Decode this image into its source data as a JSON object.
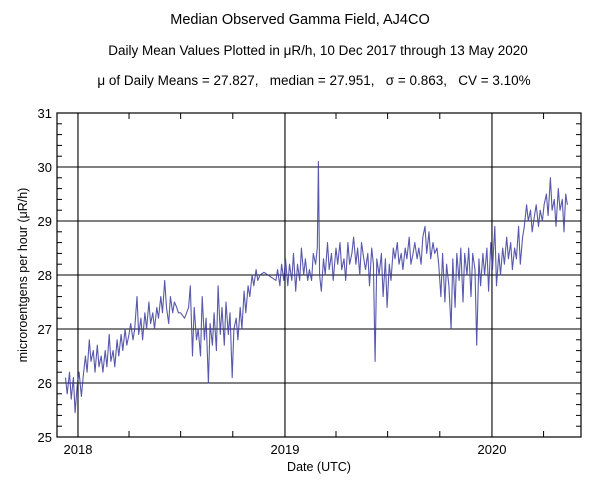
{
  "chart_data": {
    "type": "line",
    "title": "Median Observed Gamma Field, AJ4CO",
    "subtitle": "Daily Mean Values Plotted in μR/h, 10 Dec 2017 through 13 May 2020",
    "stats_line": "μ of Daily Means = 27.827,   median = 27.951,   σ = 0.863,   CV = 3.10%",
    "xlabel": "Date (UTC)",
    "ylabel": "microroentgens per hour (μR/h)",
    "xlim": [
      "2017-11-25",
      "2020-06-06"
    ],
    "ylim": [
      25,
      31
    ],
    "yticks": [
      "25",
      "26",
      "27",
      "28",
      "29",
      "30",
      "31"
    ],
    "xticks": [
      "2018",
      "2019",
      "2020"
    ],
    "grid": true,
    "line_color": "#3b3b9e",
    "points": [
      [
        "2017-12-10",
        26.1
      ],
      [
        "2017-12-13",
        25.8
      ],
      [
        "2017-12-17",
        26.2
      ],
      [
        "2017-12-20",
        25.7
      ],
      [
        "2017-12-24",
        26.1
      ],
      [
        "2017-12-27",
        25.45
      ],
      [
        "2017-12-31",
        26.0
      ],
      [
        "2018-01-03",
        26.2
      ],
      [
        "2018-01-07",
        25.75
      ],
      [
        "2018-01-10",
        26.1
      ],
      [
        "2018-01-14",
        26.5
      ],
      [
        "2018-01-17",
        26.2
      ],
      [
        "2018-01-21",
        26.8
      ],
      [
        "2018-01-24",
        26.4
      ],
      [
        "2018-01-28",
        26.6
      ],
      [
        "2018-01-31",
        26.2
      ],
      [
        "2018-02-04",
        26.7
      ],
      [
        "2018-02-07",
        26.3
      ],
      [
        "2018-02-11",
        26.5
      ],
      [
        "2018-02-14",
        26.2
      ],
      [
        "2018-02-18",
        26.6
      ],
      [
        "2018-02-21",
        26.3
      ],
      [
        "2018-02-25",
        26.9
      ],
      [
        "2018-02-28",
        26.4
      ],
      [
        "2018-03-04",
        26.6
      ],
      [
        "2018-03-07",
        26.3
      ],
      [
        "2018-03-11",
        26.8
      ],
      [
        "2018-03-14",
        26.5
      ],
      [
        "2018-03-18",
        26.9
      ],
      [
        "2018-03-21",
        26.6
      ],
      [
        "2018-03-25",
        27.0
      ],
      [
        "2018-03-28",
        26.7
      ],
      [
        "2018-04-01",
        26.9
      ],
      [
        "2018-04-04",
        27.1
      ],
      [
        "2018-04-08",
        26.8
      ],
      [
        "2018-04-11",
        27.0
      ],
      [
        "2018-04-15",
        27.6
      ],
      [
        "2018-04-18",
        26.9
      ],
      [
        "2018-04-22",
        27.2
      ],
      [
        "2018-04-25",
        26.8
      ],
      [
        "2018-04-29",
        27.3
      ],
      [
        "2018-05-02",
        27.0
      ],
      [
        "2018-05-06",
        27.5
      ],
      [
        "2018-05-09",
        27.1
      ],
      [
        "2018-05-13",
        27.3
      ],
      [
        "2018-05-16",
        27.0
      ],
      [
        "2018-05-20",
        27.4
      ],
      [
        "2018-05-23",
        27.2
      ],
      [
        "2018-05-27",
        27.6
      ],
      [
        "2018-05-30",
        27.3
      ],
      [
        "2018-06-03",
        27.9
      ],
      [
        "2018-06-06",
        27.4
      ],
      [
        "2018-06-10",
        27.1
      ],
      [
        "2018-06-13",
        27.6
      ],
      [
        "2018-06-17",
        27.3
      ],
      [
        "2018-06-20",
        27.5
      ],
      [
        "2018-06-24",
        27.4
      ],
      [
        "2018-06-27",
        27.3
      ],
      [
        "2018-07-01",
        27.3
      ],
      [
        "2018-07-08",
        27.2
      ],
      [
        "2018-07-15",
        27.4
      ],
      [
        "2018-07-18",
        27.8
      ],
      [
        "2018-07-22",
        26.5
      ],
      [
        "2018-07-25",
        27.4
      ],
      [
        "2018-07-29",
        26.8
      ],
      [
        "2018-08-01",
        27.0
      ],
      [
        "2018-08-05",
        26.5
      ],
      [
        "2018-08-08",
        27.6
      ],
      [
        "2018-08-12",
        26.8
      ],
      [
        "2018-08-15",
        27.2
      ],
      [
        "2018-08-19",
        26.0
      ],
      [
        "2018-08-22",
        27.1
      ],
      [
        "2018-08-26",
        26.7
      ],
      [
        "2018-08-29",
        27.3
      ],
      [
        "2018-09-02",
        26.6
      ],
      [
        "2018-09-05",
        27.8
      ],
      [
        "2018-09-09",
        26.9
      ],
      [
        "2018-09-12",
        27.4
      ],
      [
        "2018-09-16",
        26.7
      ],
      [
        "2018-09-19",
        27.5
      ],
      [
        "2018-09-23",
        26.9
      ],
      [
        "2018-09-26",
        27.3
      ],
      [
        "2018-09-30",
        26.1
      ],
      [
        "2018-10-03",
        27.0
      ],
      [
        "2018-10-07",
        27.2
      ],
      [
        "2018-10-10",
        26.8
      ],
      [
        "2018-10-14",
        27.4
      ],
      [
        "2018-10-17",
        27.0
      ],
      [
        "2018-10-21",
        27.7
      ],
      [
        "2018-10-24",
        27.3
      ],
      [
        "2018-10-28",
        27.8
      ],
      [
        "2018-10-31",
        27.6
      ],
      [
        "2018-11-04",
        28.0
      ],
      [
        "2018-11-07",
        27.8
      ],
      [
        "2018-11-11",
        28.1
      ],
      [
        "2018-11-14",
        27.9
      ],
      [
        "2018-11-18",
        28.0
      ],
      [
        "2018-11-25",
        28.05
      ],
      [
        "2018-12-02",
        28.0
      ],
      [
        "2018-12-09",
        27.95
      ],
      [
        "2018-12-16",
        27.9
      ],
      [
        "2018-12-19",
        28.1
      ],
      [
        "2018-12-23",
        27.8
      ],
      [
        "2018-12-26",
        28.2
      ],
      [
        "2018-12-30",
        27.9
      ],
      [
        "2019-01-02",
        28.3
      ],
      [
        "2019-01-06",
        27.8
      ],
      [
        "2019-01-09",
        28.2
      ],
      [
        "2019-01-13",
        27.9
      ],
      [
        "2019-01-16",
        28.4
      ],
      [
        "2019-01-20",
        27.7
      ],
      [
        "2019-01-23",
        28.2
      ],
      [
        "2019-01-27",
        27.9
      ],
      [
        "2019-01-30",
        28.5
      ],
      [
        "2019-02-03",
        28.0
      ],
      [
        "2019-02-06",
        28.3
      ],
      [
        "2019-02-10",
        27.9
      ],
      [
        "2019-02-13",
        28.1
      ],
      [
        "2019-02-17",
        27.9
      ],
      [
        "2019-02-20",
        28.4
      ],
      [
        "2019-02-24",
        28.2
      ],
      [
        "2019-02-27",
        28.5
      ],
      [
        "2019-03-01",
        30.1
      ],
      [
        "2019-03-03",
        28.0
      ],
      [
        "2019-03-06",
        27.7
      ],
      [
        "2019-03-10",
        28.3
      ],
      [
        "2019-03-13",
        28.0
      ],
      [
        "2019-03-17",
        28.6
      ],
      [
        "2019-03-20",
        28.1
      ],
      [
        "2019-03-24",
        28.4
      ],
      [
        "2019-03-27",
        27.9
      ],
      [
        "2019-04-01",
        28.5
      ],
      [
        "2019-04-04",
        28.2
      ],
      [
        "2019-04-08",
        28.6
      ],
      [
        "2019-04-11",
        28.1
      ],
      [
        "2019-04-15",
        28.3
      ],
      [
        "2019-04-18",
        27.9
      ],
      [
        "2019-04-22",
        28.6
      ],
      [
        "2019-04-25",
        28.2
      ],
      [
        "2019-04-29",
        28.4
      ],
      [
        "2019-05-02",
        28.7
      ],
      [
        "2019-05-06",
        28.2
      ],
      [
        "2019-05-09",
        28.5
      ],
      [
        "2019-05-13",
        28.0
      ],
      [
        "2019-05-16",
        28.6
      ],
      [
        "2019-05-20",
        28.3
      ],
      [
        "2019-05-23",
        28.1
      ],
      [
        "2019-05-27",
        28.4
      ],
      [
        "2019-05-30",
        27.8
      ],
      [
        "2019-06-03",
        28.5
      ],
      [
        "2019-06-06",
        28.2
      ],
      [
        "2019-06-09",
        26.4
      ],
      [
        "2019-06-12",
        28.3
      ],
      [
        "2019-06-16",
        28.0
      ],
      [
        "2019-06-20",
        28.4
      ],
      [
        "2019-06-23",
        27.6
      ],
      [
        "2019-06-27",
        28.3
      ],
      [
        "2019-06-30",
        27.4
      ],
      [
        "2019-07-04",
        28.2
      ],
      [
        "2019-07-07",
        27.9
      ],
      [
        "2019-07-11",
        28.5
      ],
      [
        "2019-07-14",
        28.3
      ],
      [
        "2019-07-18",
        28.6
      ],
      [
        "2019-07-21",
        28.2
      ],
      [
        "2019-07-25",
        28.4
      ],
      [
        "2019-07-28",
        28.1
      ],
      [
        "2019-08-01",
        28.5
      ],
      [
        "2019-08-04",
        28.3
      ],
      [
        "2019-08-08",
        28.7
      ],
      [
        "2019-08-11",
        28.2
      ],
      [
        "2019-08-15",
        28.4
      ],
      [
        "2019-08-18",
        28.6
      ],
      [
        "2019-08-22",
        28.3
      ],
      [
        "2019-08-25",
        28.5
      ],
      [
        "2019-08-29",
        28.2
      ],
      [
        "2019-09-01",
        28.7
      ],
      [
        "2019-09-05",
        28.9
      ],
      [
        "2019-09-08",
        28.4
      ],
      [
        "2019-09-12",
        28.8
      ],
      [
        "2019-09-15",
        28.3
      ],
      [
        "2019-09-19",
        28.6
      ],
      [
        "2019-09-22",
        28.4
      ],
      [
        "2019-09-26",
        28.5
      ],
      [
        "2019-09-29",
        28.2
      ],
      [
        "2019-10-03",
        27.6
      ],
      [
        "2019-10-06",
        28.4
      ],
      [
        "2019-10-10",
        27.5
      ],
      [
        "2019-10-13",
        28.2
      ],
      [
        "2019-10-17",
        27.8
      ],
      [
        "2019-10-21",
        27.0
      ],
      [
        "2019-10-24",
        28.3
      ],
      [
        "2019-10-28",
        27.4
      ],
      [
        "2019-10-31",
        28.4
      ],
      [
        "2019-11-04",
        27.9
      ],
      [
        "2019-11-07",
        28.5
      ],
      [
        "2019-11-11",
        27.5
      ],
      [
        "2019-11-14",
        28.4
      ],
      [
        "2019-11-18",
        28.0
      ],
      [
        "2019-11-21",
        28.5
      ],
      [
        "2019-11-25",
        27.6
      ],
      [
        "2019-11-28",
        28.4
      ],
      [
        "2019-12-02",
        28.1
      ],
      [
        "2019-12-05",
        26.7
      ],
      [
        "2019-12-09",
        28.3
      ],
      [
        "2019-12-12",
        27.8
      ],
      [
        "2019-12-16",
        28.4
      ],
      [
        "2019-12-19",
        28.0
      ],
      [
        "2019-12-23",
        28.5
      ],
      [
        "2019-12-26",
        27.7
      ],
      [
        "2019-12-30",
        28.6
      ],
      [
        "2020-01-02",
        28.1
      ],
      [
        "2020-01-06",
        28.9
      ],
      [
        "2020-01-09",
        27.8
      ],
      [
        "2020-01-13",
        28.4
      ],
      [
        "2020-01-16",
        28.0
      ],
      [
        "2020-01-20",
        28.5
      ],
      [
        "2020-01-23",
        28.2
      ],
      [
        "2020-01-27",
        28.7
      ],
      [
        "2020-01-30",
        28.3
      ],
      [
        "2020-02-03",
        28.6
      ],
      [
        "2020-02-06",
        28.1
      ],
      [
        "2020-02-10",
        28.5
      ],
      [
        "2020-02-13",
        28.3
      ],
      [
        "2020-02-17",
        28.9
      ],
      [
        "2020-02-20",
        28.2
      ],
      [
        "2020-02-24",
        28.7
      ],
      [
        "2020-02-27",
        28.9
      ],
      [
        "2020-03-02",
        29.3
      ],
      [
        "2020-03-05",
        29.0
      ],
      [
        "2020-03-09",
        29.2
      ],
      [
        "2020-03-12",
        28.8
      ],
      [
        "2020-03-16",
        29.1
      ],
      [
        "2020-03-19",
        29.3
      ],
      [
        "2020-03-23",
        28.9
      ],
      [
        "2020-03-26",
        29.2
      ],
      [
        "2020-03-30",
        29.0
      ],
      [
        "2020-04-02",
        29.3
      ],
      [
        "2020-04-06",
        29.5
      ],
      [
        "2020-04-09",
        29.1
      ],
      [
        "2020-04-13",
        29.8
      ],
      [
        "2020-04-16",
        29.2
      ],
      [
        "2020-04-20",
        29.4
      ],
      [
        "2020-04-23",
        28.9
      ],
      [
        "2020-04-27",
        29.6
      ],
      [
        "2020-04-30",
        29.2
      ],
      [
        "2020-05-04",
        29.4
      ],
      [
        "2020-05-07",
        28.8
      ],
      [
        "2020-05-10",
        29.5
      ],
      [
        "2020-05-13",
        29.3
      ]
    ]
  }
}
